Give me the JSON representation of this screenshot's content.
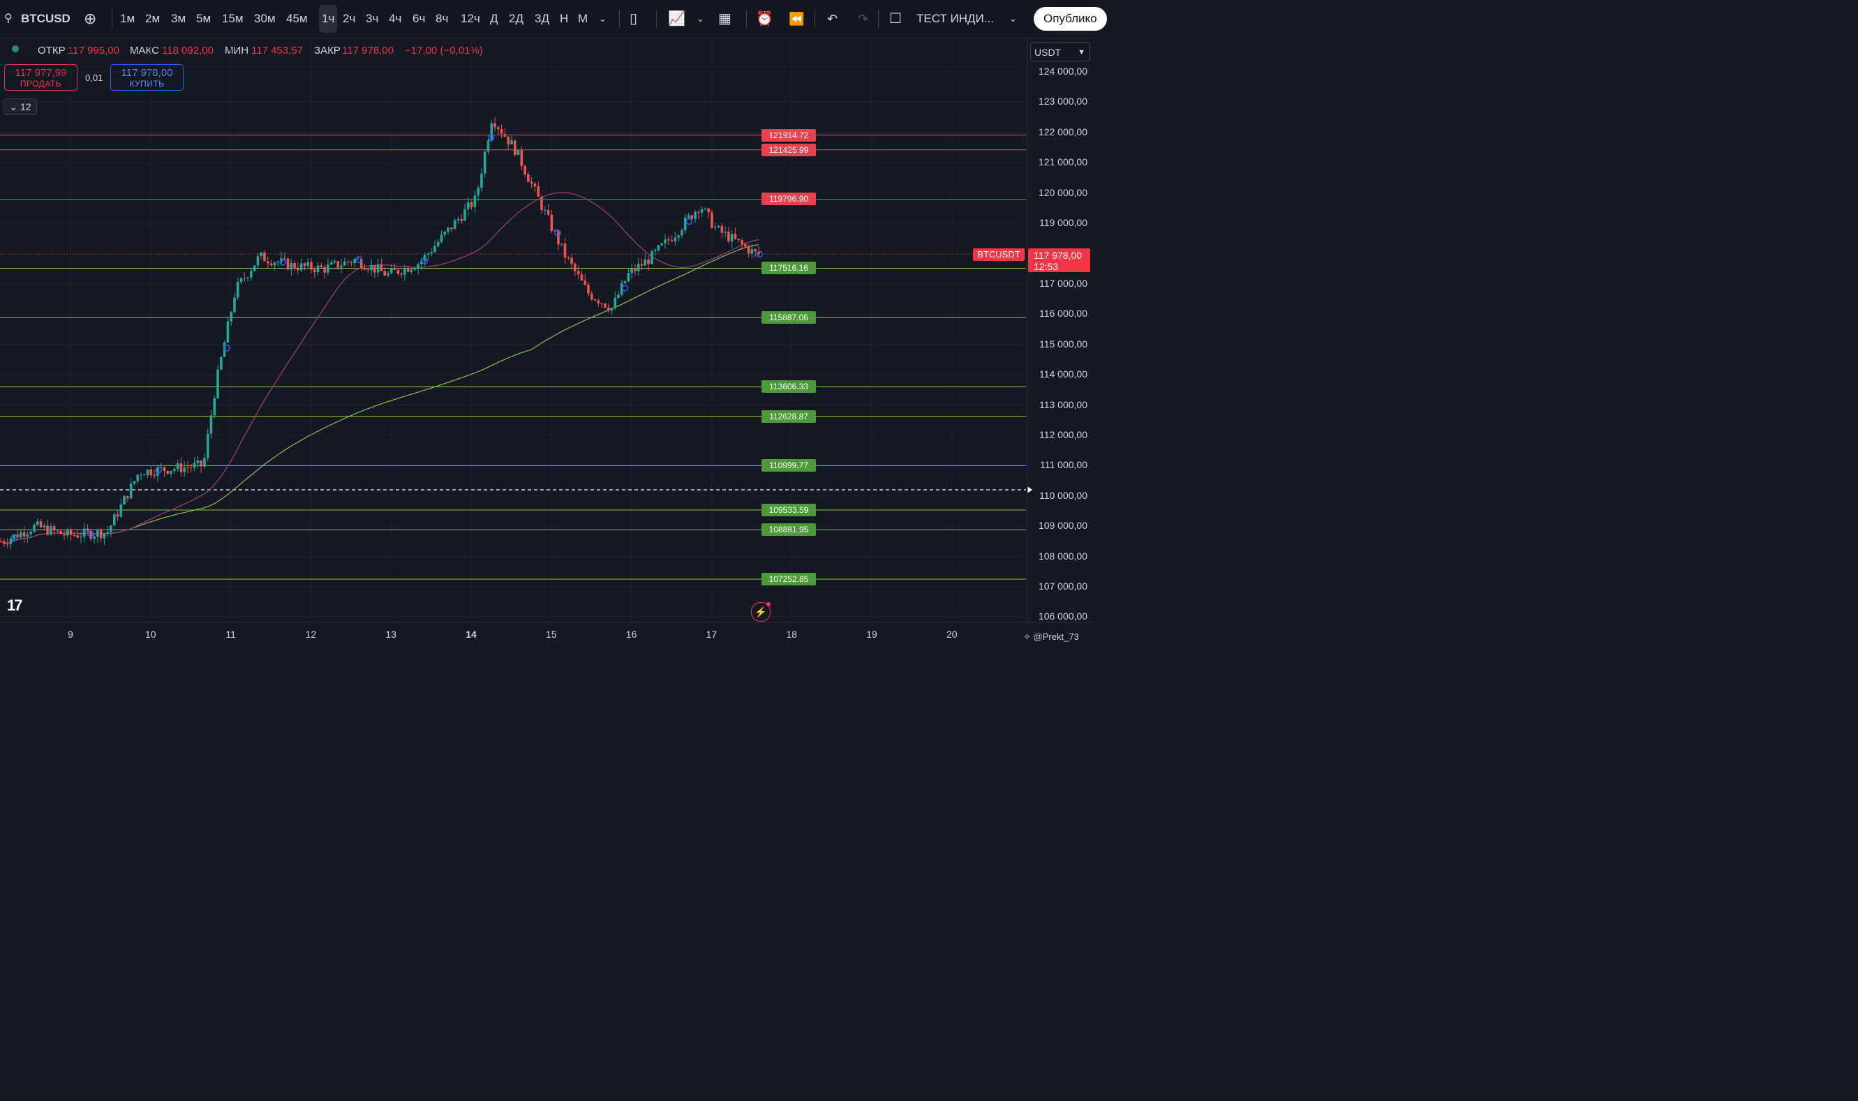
{
  "toolbar": {
    "symbol": "BTCUSD",
    "timeframes": [
      "1м",
      "2м",
      "3м",
      "5м",
      "15м",
      "30м",
      "45м",
      "1ч",
      "2ч",
      "3ч",
      "4ч",
      "6ч",
      "8ч",
      "12ч",
      "Д",
      "2Д",
      "3Д",
      "Н",
      "М"
    ],
    "active_timeframe": "1ч",
    "indicator_label": "ТЕСТ ИНДИ...",
    "publish_label": "Опублико"
  },
  "legend": {
    "open_label": "ОТКР",
    "open": "117 995,00",
    "high_label": "МАКС",
    "high": "118 092,00",
    "low_label": "МИН",
    "low": "117 453,57",
    "close_label": "ЗАКР",
    "close": "117 978,00",
    "change": "−17,00 (−0,01%)"
  },
  "trade": {
    "sell_price": "117 977,99",
    "sell_label": "ПРОДАТЬ",
    "spread": "0,01",
    "buy_price": "117 978,00",
    "buy_label": "КУПИТЬ",
    "collapse_count": "12"
  },
  "currency": "USDT",
  "price_axis": [
    "124 000,00",
    "123 000,00",
    "122 000,00",
    "121 000,00",
    "120 000,00",
    "119 000,00",
    "118 000,00",
    "117 000,00",
    "116 000,00",
    "115 000,00",
    "114 000,00",
    "113 000,00",
    "112 000,00",
    "111 000,00",
    "110 000,00",
    "109 000,00",
    "108 000,00",
    "107 000,00",
    "106 000,00"
  ],
  "time_axis": [
    "9",
    "10",
    "11",
    "12",
    "13",
    "14",
    "15",
    "16",
    "17",
    "18",
    "19",
    "20"
  ],
  "levels": [
    {
      "value": "121914.72",
      "kind": "resistance"
    },
    {
      "value": "121425.99",
      "kind": "resistance"
    },
    {
      "value": "119796.90",
      "kind": "resistance"
    },
    {
      "value": "117516.16",
      "kind": "support"
    },
    {
      "value": "115887.06",
      "kind": "support"
    },
    {
      "value": "113606.33",
      "kind": "support"
    },
    {
      "value": "112628.87",
      "kind": "support"
    },
    {
      "value": "110999.77",
      "kind": "support"
    },
    {
      "value": "109533.59",
      "kind": "support"
    },
    {
      "value": "108881.95",
      "kind": "support"
    },
    {
      "value": "107252.85",
      "kind": "support"
    }
  ],
  "current_price": {
    "symbol": "BTCUSDT",
    "price": "117 978,00",
    "countdown": "12:53"
  },
  "colors": {
    "up": "#26a69a",
    "down": "#ef5350",
    "resistance": "#e84a5f",
    "support": "#8bc34a",
    "ma_fast": "#a03a78",
    "ma_slow": "#8bc34a"
  },
  "watermark": "@Prekt_73",
  "chart_data": {
    "type": "candlestick",
    "x_unit": "day of month",
    "ylim": [
      106000,
      124000
    ],
    "series": [
      {
        "name": "price",
        "points": [
          [
            8.2,
            108500
          ],
          [
            8.6,
            109000
          ],
          [
            9.0,
            108700
          ],
          [
            9.5,
            108800
          ],
          [
            9.9,
            110800
          ],
          [
            10.3,
            110900
          ],
          [
            10.7,
            111000
          ],
          [
            10.85,
            113600
          ],
          [
            11.1,
            116800
          ],
          [
            11.4,
            117900
          ],
          [
            11.8,
            117600
          ],
          [
            12.2,
            117500
          ],
          [
            12.6,
            117800
          ],
          [
            13.0,
            117300
          ],
          [
            13.4,
            117700
          ],
          [
            13.8,
            118900
          ],
          [
            14.1,
            119800
          ],
          [
            14.3,
            122500
          ],
          [
            14.6,
            121400
          ],
          [
            14.9,
            119700
          ],
          [
            15.2,
            118000
          ],
          [
            15.5,
            116700
          ],
          [
            15.8,
            116200
          ],
          [
            16.0,
            117300
          ],
          [
            16.3,
            117900
          ],
          [
            16.6,
            118700
          ],
          [
            16.9,
            119600
          ],
          [
            17.1,
            118800
          ],
          [
            17.35,
            118400
          ],
          [
            17.6,
            117978
          ]
        ]
      }
    ]
  }
}
